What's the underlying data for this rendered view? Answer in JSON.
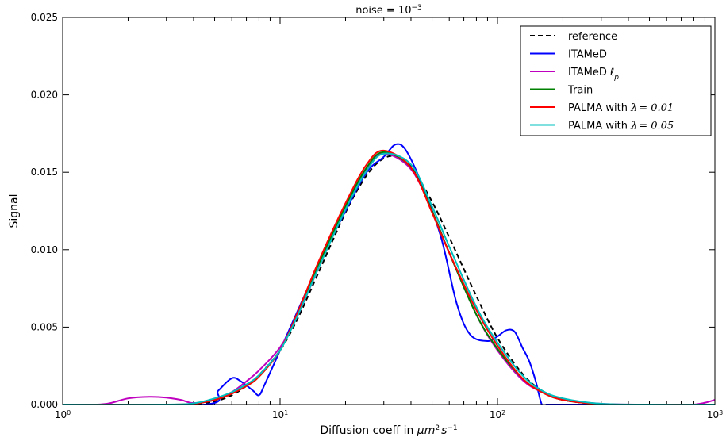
{
  "chart_data": {
    "type": "line",
    "title_prefix": "noise = ",
    "title_exp_base": "10",
    "title_exp": "−3",
    "xlabel_prefix": "Diffusion coeff in ",
    "xlabel_unit": "μm",
    "xlabel_unit_exp1": "2",
    "xlabel_unit_s": "s",
    "xlabel_unit_exp2": "−1",
    "ylabel": "Signal",
    "xscale": "log",
    "xlim": [
      1,
      1000
    ],
    "ylim": [
      0,
      0.025
    ],
    "grid": false,
    "legend_position": "top-right",
    "x_ticks": [
      {
        "base": "10",
        "exp": "0",
        "value": 1
      },
      {
        "base": "10",
        "exp": "1",
        "value": 10
      },
      {
        "base": "10",
        "exp": "2",
        "value": 100
      },
      {
        "base": "10",
        "exp": "3",
        "value": 1000
      }
    ],
    "y_ticks": [
      "0.000",
      "0.005",
      "0.010",
      "0.015",
      "0.020",
      "0.025"
    ],
    "y_tick_values": [
      0,
      0.005,
      0.01,
      0.015,
      0.02,
      0.025
    ],
    "series": [
      {
        "name": "reference",
        "color": "#000000",
        "dash": "6,4",
        "x": [
          1,
          3,
          4,
          5,
          6,
          7,
          8,
          10,
          12,
          15,
          20,
          25,
          30,
          35,
          40,
          50,
          60,
          80,
          100,
          130,
          160,
          200,
          300,
          500,
          1000
        ],
        "y": [
          0,
          0,
          3e-05,
          0.0002,
          0.0006,
          0.0012,
          0.0019,
          0.0035,
          0.0055,
          0.0085,
          0.0124,
          0.0148,
          0.0159,
          0.016,
          0.0154,
          0.0131,
          0.0108,
          0.007,
          0.0043,
          0.002,
          0.0009,
          0.0003,
          3e-05,
          0,
          0
        ]
      },
      {
        "name": "ITAMeD",
        "color": "#0000ff",
        "x": [
          1,
          4.5,
          5.2,
          6,
          6.6,
          7.5,
          8,
          8.5,
          10,
          12,
          15,
          20,
          25,
          30,
          34,
          38,
          45,
          55,
          65,
          75,
          90,
          100,
          110,
          120,
          130,
          140,
          150,
          160,
          170,
          200,
          1000
        ],
        "y": [
          0,
          0,
          0.0009,
          0.0017,
          0.0015,
          0.0009,
          0.0006,
          0.0013,
          0.0035,
          0.006,
          0.009,
          0.0125,
          0.015,
          0.016,
          0.0168,
          0.0164,
          0.0142,
          0.0108,
          0.0065,
          0.0045,
          0.0041,
          0.0044,
          0.0048,
          0.0047,
          0.0037,
          0.0028,
          0.0015,
          0,
          0,
          0,
          0
        ]
      },
      {
        "name": "ITAMeD",
        "name_sub_symbol": "ℓ",
        "name_sub": "p",
        "color": "#bf00bf",
        "x": [
          1,
          1.3,
          1.6,
          2,
          2.5,
          3,
          3.5,
          4,
          5,
          6,
          7,
          8,
          10,
          12,
          15,
          20,
          25,
          30,
          40,
          50,
          60,
          80,
          100,
          130,
          160,
          200,
          300,
          500,
          800,
          1000
        ],
        "y": [
          0,
          0,
          5e-05,
          0.0004,
          0.0005,
          0.00045,
          0.0003,
          0.0001,
          0.0003,
          0.0008,
          0.0015,
          0.0022,
          0.0037,
          0.0057,
          0.0088,
          0.0127,
          0.0152,
          0.0162,
          0.0152,
          0.0125,
          0.0098,
          0.0058,
          0.0035,
          0.0016,
          0.0008,
          0.00035,
          5e-05,
          0,
          0,
          0.0003
        ]
      },
      {
        "name": "Train",
        "color": "#008000",
        "x": [
          1,
          3,
          4,
          5,
          6,
          7,
          8,
          10,
          12,
          15,
          20,
          25,
          30,
          40,
          50,
          60,
          80,
          100,
          130,
          160,
          200,
          300,
          500,
          1000
        ],
        "y": [
          0,
          0,
          5e-05,
          0.0003,
          0.0007,
          0.0012,
          0.0018,
          0.0035,
          0.0058,
          0.009,
          0.0128,
          0.0153,
          0.0163,
          0.0153,
          0.0125,
          0.0098,
          0.0058,
          0.0036,
          0.0017,
          0.0008,
          0.0003,
          3e-05,
          0,
          0
        ]
      },
      {
        "name": "PALMA with",
        "name_symbol": "λ",
        "name_value": "= 0.01",
        "color": "#ff0000",
        "x": [
          1,
          3,
          4,
          5,
          6,
          7,
          8,
          10,
          12,
          15,
          20,
          25,
          30,
          40,
          50,
          60,
          80,
          100,
          130,
          160,
          200,
          300,
          500,
          1000
        ],
        "y": [
          0,
          0,
          5e-05,
          0.0003,
          0.0007,
          0.0012,
          0.0018,
          0.0035,
          0.0059,
          0.0092,
          0.013,
          0.0155,
          0.0164,
          0.0153,
          0.0124,
          0.0098,
          0.0061,
          0.0038,
          0.0017,
          0.0008,
          0.0003,
          3e-05,
          0,
          0
        ]
      },
      {
        "name": "PALMA with",
        "name_symbol": "λ",
        "name_value": "= 0.05",
        "color": "#00bfbf",
        "x": [
          1,
          3,
          4,
          5,
          6,
          7,
          8,
          10,
          12,
          15,
          20,
          25,
          30,
          40,
          50,
          60,
          80,
          100,
          130,
          160,
          200,
          300,
          500,
          1000
        ],
        "y": [
          0,
          0,
          8e-05,
          0.0004,
          0.0008,
          0.0013,
          0.0019,
          0.0035,
          0.0057,
          0.0088,
          0.0126,
          0.0151,
          0.0162,
          0.0155,
          0.0128,
          0.0102,
          0.0063,
          0.004,
          0.0019,
          0.0009,
          0.0004,
          5e-05,
          0,
          0
        ]
      }
    ]
  }
}
